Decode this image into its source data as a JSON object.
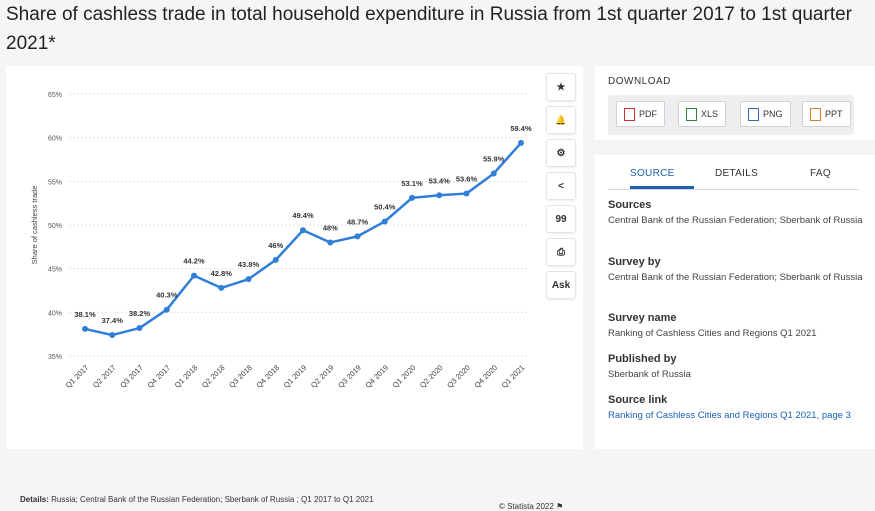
{
  "page": {
    "title": "Share of cashless trade in total household expenditure in Russia from 1st quarter 2017 to 1st quarter 2021*"
  },
  "toolbar": {
    "buttons": [
      {
        "name": "star-icon",
        "glyph": "★"
      },
      {
        "name": "bell-icon",
        "glyph": "🔔"
      },
      {
        "name": "gear-icon",
        "glyph": "⚙"
      },
      {
        "name": "share-icon",
        "glyph": "<"
      },
      {
        "name": "quote-icon",
        "glyph": "99"
      },
      {
        "name": "print-icon",
        "glyph": "⎙"
      },
      {
        "name": "ask-button",
        "glyph": "Ask"
      }
    ]
  },
  "chart_data": {
    "type": "line",
    "title": "Share of cashless trade in total household expenditure in Russia from 1st quarter 2017 to 1st quarter 2021*",
    "xlabel": "",
    "ylabel": "Share of cashless trade",
    "categories": [
      "Q1 2017",
      "Q2 2017",
      "Q3 2017",
      "Q4 2017",
      "Q1 2018",
      "Q2 2018",
      "Q3 2018",
      "Q4 2018",
      "Q1 2019",
      "Q2 2019",
      "Q3 2019",
      "Q4 2019",
      "Q1 2020",
      "Q2 2020",
      "Q3 2020",
      "Q4 2020",
      "Q1 2021"
    ],
    "values": [
      38.1,
      37.4,
      38.2,
      40.3,
      44.2,
      42.8,
      43.8,
      46,
      49.4,
      48,
      48.7,
      50.4,
      53.1,
      53.4,
      53.6,
      55.9,
      59.4
    ],
    "data_labels": [
      "38.1%",
      "37.4%",
      "38.2%",
      "40.3%",
      "44.2%",
      "42.8%",
      "43.8%",
      "46%",
      "49.4%",
      "48%",
      "48.7%",
      "50.4%",
      "53.1%",
      "53.4%",
      "53.6%",
      "55.9%",
      "59.4%"
    ],
    "yticks": [
      35,
      40,
      45,
      50,
      55,
      60,
      65
    ],
    "ytick_labels": [
      "35%",
      "40%",
      "45%",
      "50%",
      "55%",
      "60%",
      "65%"
    ],
    "ylim": [
      35,
      65
    ],
    "grid": true,
    "color": "#2f7ed8"
  },
  "details": {
    "label": "Details:",
    "text": "Russia; Central Bank of the Russian Federation; Sberbank of Russia ; Q1 2017 to Q1 2021"
  },
  "credit": "© Statista 2022",
  "download": {
    "heading": "DOWNLOAD",
    "buttons": [
      "PDF",
      "XLS",
      "PNG",
      "PPT"
    ]
  },
  "tabs": [
    "SOURCE",
    "DETAILS",
    "FAQ"
  ],
  "meta": {
    "sources_h": "Sources",
    "sources_v": "Central Bank of the Russian Federation; Sberbank of Russia",
    "survey_by_h": "Survey by",
    "survey_by_v": "Central Bank of the Russian Federation; Sberbank of Russia",
    "survey_name_h": "Survey name",
    "survey_name_v": "Ranking of Cashless Cities and Regions Q1 2021",
    "published_h": "Published by",
    "published_v": "Sberbank of Russia",
    "source_link_h": "Source link",
    "source_link_v": "Ranking of Cashless Cities and Regions Q1 2021, page 3"
  }
}
